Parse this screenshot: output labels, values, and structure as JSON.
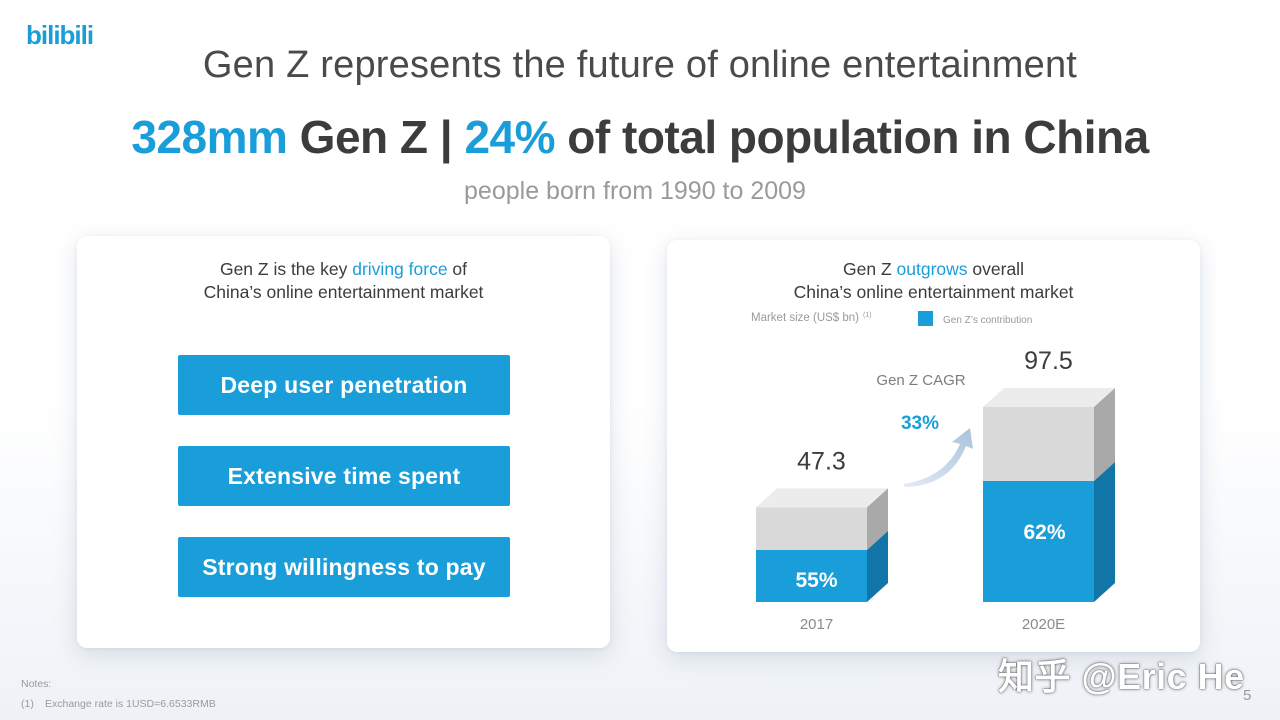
{
  "brand": {
    "logo_text": "bilibili",
    "color": "#1a9ed9"
  },
  "header": {
    "subtitle": "Gen Z represents the future of online entertainment",
    "headline": {
      "part1": "328mm",
      "part2": " Gen Z | ",
      "part3": "24%",
      "part4": " of total population in China"
    },
    "note": "people born from 1990 to 2009"
  },
  "left_panel": {
    "title_pre": "Gen Z is the key ",
    "title_highlight": "driving force",
    "title_post": " of",
    "title_line2": "China’s online entertainment market",
    "items": [
      {
        "label": "Deep user penetration"
      },
      {
        "label": "Extensive time spent"
      },
      {
        "label": "Strong willingness to pay"
      }
    ]
  },
  "right_panel": {
    "title_pre": "Gen Z ",
    "title_highlight": "outgrows",
    "title_post": " overall",
    "title_line2": "China’s online entertainment market"
  },
  "chart_data": {
    "type": "bar",
    "title": "Gen Z outgrows overall China’s online entertainment market",
    "ylabel": "Market size (US$ bn)",
    "ylabel_footnote": "(1)",
    "legend": [
      {
        "name": "Gen Z’s contribution",
        "color": "#1a9ed9"
      }
    ],
    "legend_position": "top-right",
    "categories": [
      "2017",
      "2020E"
    ],
    "totals": [
      47.3,
      97.5
    ],
    "total_labels": [
      "47.3",
      "97.5"
    ],
    "genz_share_pct": [
      55,
      62
    ],
    "share_labels": [
      "55%",
      "62%"
    ],
    "series": [
      {
        "name": "Gen Z’s contribution",
        "values": [
          26.0,
          60.5
        ],
        "color": "#1a9ed9"
      },
      {
        "name": "Other",
        "values": [
          21.3,
          37.0
        ],
        "color": "#d9d9d9"
      }
    ],
    "annotation": {
      "label": "Gen Z CAGR",
      "value": "33%"
    },
    "ylim": [
      0,
      97.5
    ]
  },
  "notes": {
    "heading": "Notes:",
    "items": [
      {
        "num": "(1)",
        "text": "Exchange rate is 1USD=6.6533RMB"
      }
    ]
  },
  "page_number": "5",
  "watermark": "知乎 @Eric He"
}
